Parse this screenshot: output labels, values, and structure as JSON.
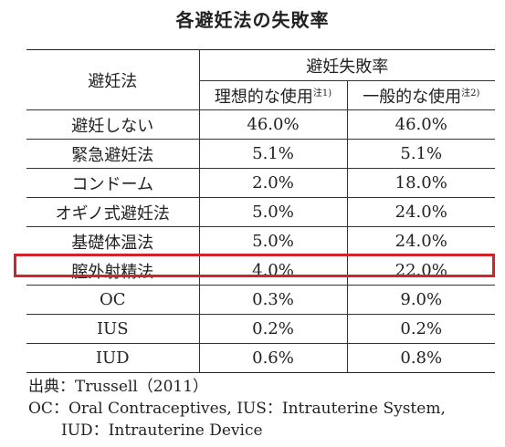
{
  "title": "各避妊法の失敗率",
  "table": {
    "method_header": "避妊法",
    "group_header": "避妊失敗率",
    "col_ideal": "理想的な使用",
    "col_ideal_note": "注1)",
    "col_typical": "一般的な使用",
    "col_typical_note": "注2)",
    "rows": [
      {
        "method": "避妊しない",
        "ideal": "46.0%",
        "typical": "46.0%"
      },
      {
        "method": "緊急避妊法",
        "ideal": "5.1%",
        "typical": "5.1%"
      },
      {
        "method": "コンドーム",
        "ideal": "2.0%",
        "typical": "18.0%"
      },
      {
        "method": "オギノ式避妊法",
        "ideal": "5.0%",
        "typical": "24.0%"
      },
      {
        "method": "基礎体温法",
        "ideal": "5.0%",
        "typical": "24.0%"
      },
      {
        "method": "膣外射精法",
        "ideal": "4.0%",
        "typical": "22.0%"
      },
      {
        "method": "OC",
        "ideal": "0.3%",
        "typical": "9.0%"
      },
      {
        "method": "IUS",
        "ideal": "0.2%",
        "typical": "0.2%"
      },
      {
        "method": "IUD",
        "ideal": "0.6%",
        "typical": "0.8%"
      }
    ],
    "highlight_color": "#d2232a"
  },
  "footer": {
    "source": "出典：Trussell（2011）",
    "abbrev_line1": "OC：Oral Contraceptives, IUS：Intrauterine System,",
    "abbrev_line2": "IUD：Intrauterine Device"
  }
}
